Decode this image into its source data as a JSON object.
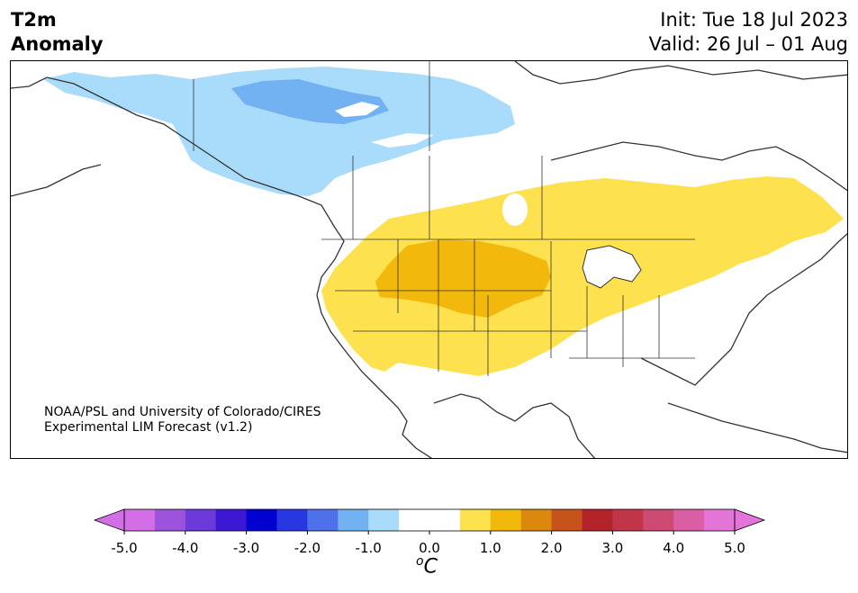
{
  "header": {
    "title_line1": "T2m",
    "title_line2": "Anomaly",
    "init_text": "Init: Tue 18 Jul 2023",
    "valid_text": "Valid: 26 Jul – 01 Aug"
  },
  "map": {
    "credit_line1": "NOAA/PSL and University of Colorado/CIRES",
    "credit_line2": "Experimental LIM Forecast (v1.2)",
    "colors": {
      "cool_light": "#a9dbfb",
      "cool_mid": "#72b1f2",
      "warm_light": "#fde14f",
      "warm_mid": "#f2b80c",
      "coastline": "#333333"
    }
  },
  "colorbar": {
    "unit_symbol": "C",
    "unit_sup": "o",
    "tick_labels": [
      "-5.0",
      "-4.0",
      "-3.0",
      "-2.0",
      "-1.0",
      "0.0",
      "1.0",
      "2.0",
      "3.0",
      "4.0",
      "5.0"
    ],
    "colors": [
      "#d46ee6",
      "#9e53dc",
      "#6b3ad9",
      "#3c17d4",
      "#0101d0",
      "#2837df",
      "#4e70e8",
      "#72b1f2",
      "#a9dbfb",
      "#ffffff",
      "#ffffff",
      "#fde14f",
      "#f2b80c",
      "#dc880f",
      "#c5531a",
      "#b2232a",
      "#c13549",
      "#cd4b72",
      "#d95ea3",
      "#e574d9"
    ],
    "under_color": "#d46ee6",
    "over_color": "#e574d9"
  }
}
